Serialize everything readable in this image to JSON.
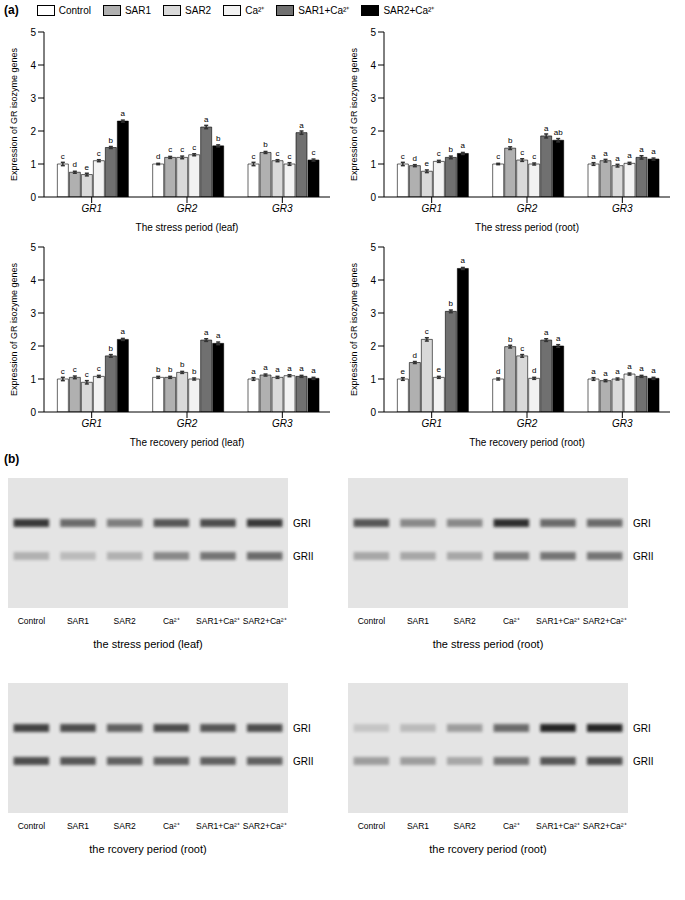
{
  "panel_labels": [
    "(a)",
    "(b)"
  ],
  "chart_data": [
    {
      "type": "bar",
      "legend": "top",
      "x_label": "The stress period (leaf)",
      "y_label": "Expression of GR isozyme genes",
      "categories": [
        "GR1",
        "GR2",
        "GR3"
      ],
      "ylim": [
        0,
        5
      ],
      "yticks": [
        0,
        1,
        2,
        3,
        4,
        5
      ],
      "grid": false,
      "series": [
        {
          "name": "Control",
          "color": "#ffffff",
          "values": [
            1.0,
            1.0,
            1.0
          ],
          "errors": [
            0.05,
            0.02,
            0.05
          ],
          "letters": [
            "c",
            "d",
            "c"
          ]
        },
        {
          "name": "SAR1",
          "color": "#b0b0b0",
          "values": [
            0.75,
            1.2,
            1.35
          ],
          "errors": [
            0.03,
            0.03,
            0.03
          ],
          "letters": [
            "d",
            "c",
            "b"
          ]
        },
        {
          "name": "SAR2",
          "color": "#d9d9d9",
          "values": [
            0.68,
            1.2,
            1.1
          ],
          "errors": [
            0.04,
            0.04,
            0.03
          ],
          "letters": [
            "e",
            "c",
            "c"
          ]
        },
        {
          "name": "Ca²⁺",
          "color": "#f2f2f2",
          "values": [
            1.1,
            1.28,
            1.0
          ],
          "errors": [
            0.03,
            0.03,
            0.04
          ],
          "letters": [
            "c",
            "c",
            "c"
          ]
        },
        {
          "name": "SAR1+Ca²⁺",
          "color": "#707070",
          "values": [
            1.5,
            2.12,
            1.95
          ],
          "errors": [
            0.03,
            0.05,
            0.05
          ],
          "letters": [
            "b",
            "a",
            "a"
          ]
        },
        {
          "name": "SAR2+Ca²⁺",
          "color": "#000000",
          "values": [
            2.3,
            1.55,
            1.12
          ],
          "errors": [
            0.03,
            0.03,
            0.03
          ],
          "letters": [
            "a",
            "b",
            "c"
          ]
        }
      ]
    },
    {
      "type": "bar",
      "x_label": "The stress period (root)",
      "y_label": "Expression of GR isozyme genes",
      "categories": [
        "GR1",
        "GR2",
        "GR3"
      ],
      "ylim": [
        0,
        5
      ],
      "yticks": [
        0,
        1,
        2,
        3,
        4,
        5
      ],
      "grid": false,
      "series": [
        {
          "name": "Control",
          "color": "#ffffff",
          "values": [
            1.0,
            1.0,
            1.0
          ],
          "errors": [
            0.05,
            0.02,
            0.04
          ],
          "letters": [
            "c",
            "c",
            "a"
          ]
        },
        {
          "name": "SAR1",
          "color": "#b0b0b0",
          "values": [
            0.95,
            1.48,
            1.1
          ],
          "errors": [
            0.03,
            0.04,
            0.04
          ],
          "letters": [
            "d",
            "b",
            "a"
          ]
        },
        {
          "name": "SAR2",
          "color": "#d9d9d9",
          "values": [
            0.78,
            1.12,
            0.95
          ],
          "errors": [
            0.04,
            0.04,
            0.04
          ],
          "letters": [
            "e",
            "c",
            "a"
          ]
        },
        {
          "name": "Ca²⁺",
          "color": "#f2f2f2",
          "values": [
            1.08,
            1.0,
            1.02
          ],
          "errors": [
            0.03,
            0.03,
            0.03
          ],
          "letters": [
            "c",
            "c",
            "a"
          ]
        },
        {
          "name": "SAR1+Ca²⁺",
          "color": "#707070",
          "values": [
            1.2,
            1.85,
            1.2
          ],
          "errors": [
            0.04,
            0.06,
            0.05
          ],
          "letters": [
            "b",
            "a",
            "a"
          ]
        },
        {
          "name": "SAR2+Ca²⁺",
          "color": "#000000",
          "values": [
            1.32,
            1.72,
            1.15
          ],
          "errors": [
            0.03,
            0.05,
            0.03
          ],
          "letters": [
            "a",
            "ab",
            "a"
          ]
        }
      ]
    },
    {
      "type": "bar",
      "x_label": "The recovery period (leaf)",
      "y_label": "Expression of GR isozyme genes",
      "categories": [
        "GR1",
        "GR2",
        "GR3"
      ],
      "ylim": [
        0,
        5
      ],
      "yticks": [
        0,
        1,
        2,
        3,
        4,
        5
      ],
      "grid": false,
      "series": [
        {
          "name": "Control",
          "color": "#ffffff",
          "values": [
            1.0,
            1.05,
            1.0
          ],
          "errors": [
            0.05,
            0.03,
            0.04
          ],
          "letters": [
            "c",
            "b",
            "a"
          ]
        },
        {
          "name": "SAR1",
          "color": "#b0b0b0",
          "values": [
            1.05,
            1.05,
            1.12
          ],
          "errors": [
            0.04,
            0.03,
            0.03
          ],
          "letters": [
            "c",
            "b",
            "a"
          ]
        },
        {
          "name": "SAR2",
          "color": "#d9d9d9",
          "values": [
            0.9,
            1.2,
            1.05
          ],
          "errors": [
            0.05,
            0.03,
            0.03
          ],
          "letters": [
            "c",
            "b",
            "a"
          ]
        },
        {
          "name": "Ca²⁺",
          "color": "#f2f2f2",
          "values": [
            1.08,
            1.0,
            1.1
          ],
          "errors": [
            0.03,
            0.03,
            0.03
          ],
          "letters": [
            "c",
            "b",
            "a"
          ]
        },
        {
          "name": "SAR1+Ca²⁺",
          "color": "#707070",
          "values": [
            1.7,
            2.18,
            1.08
          ],
          "errors": [
            0.04,
            0.04,
            0.03
          ],
          "letters": [
            "b",
            "a",
            "a"
          ]
        },
        {
          "name": "SAR2+Ca²⁺",
          "color": "#000000",
          "values": [
            2.2,
            2.08,
            1.02
          ],
          "errors": [
            0.03,
            0.04,
            0.03
          ],
          "letters": [
            "a",
            "a",
            "a"
          ]
        }
      ]
    },
    {
      "type": "bar",
      "x_label": "The recovery period (root)",
      "y_label": "Expression of GR isozyme genes",
      "categories": [
        "GR1",
        "GR2",
        "GR3"
      ],
      "ylim": [
        0,
        5
      ],
      "yticks": [
        0,
        1,
        2,
        3,
        4,
        5
      ],
      "grid": false,
      "series": [
        {
          "name": "Control",
          "color": "#ffffff",
          "values": [
            1.0,
            1.0,
            1.0
          ],
          "errors": [
            0.04,
            0.03,
            0.04
          ],
          "letters": [
            "e",
            "d",
            "a"
          ]
        },
        {
          "name": "SAR1",
          "color": "#b0b0b0",
          "values": [
            1.5,
            1.98,
            0.95
          ],
          "errors": [
            0.03,
            0.04,
            0.03
          ],
          "letters": [
            "d",
            "b",
            "a"
          ]
        },
        {
          "name": "SAR2",
          "color": "#d9d9d9",
          "values": [
            2.2,
            1.7,
            1.0
          ],
          "errors": [
            0.05,
            0.04,
            0.03
          ],
          "letters": [
            "c",
            "c",
            "a"
          ]
        },
        {
          "name": "Ca²⁺",
          "color": "#f2f2f2",
          "values": [
            1.05,
            1.02,
            1.15
          ],
          "errors": [
            0.03,
            0.03,
            0.03
          ],
          "letters": [
            "e",
            "d",
            "a"
          ]
        },
        {
          "name": "SAR1+Ca²⁺",
          "color": "#707070",
          "values": [
            3.05,
            2.18,
            1.08
          ],
          "errors": [
            0.04,
            0.04,
            0.03
          ],
          "letters": [
            "b",
            "a",
            "a"
          ]
        },
        {
          "name": "SAR2+Ca²⁺",
          "color": "#000000",
          "values": [
            4.35,
            2.0,
            1.02
          ],
          "errors": [
            0.03,
            0.04,
            0.03
          ],
          "letters": [
            "a",
            "a",
            "a"
          ]
        }
      ]
    }
  ],
  "gels": [
    {
      "caption": "the stress period (leaf)",
      "lanes": [
        "Control",
        "SAR1",
        "SAR2",
        "Ca²⁺",
        "SAR1+Ca²⁺",
        "SAR2+Ca²⁺"
      ],
      "bands": [
        {
          "name": "GRI",
          "intensity": [
            0.85,
            0.6,
            0.5,
            0.7,
            0.75,
            0.85
          ]
        },
        {
          "name": "GRII",
          "intensity": [
            0.25,
            0.2,
            0.25,
            0.45,
            0.55,
            0.6
          ]
        }
      ]
    },
    {
      "caption": "the stress period (root)",
      "lanes": [
        "Control",
        "SAR1",
        "SAR2",
        "Ca²⁺",
        "SAR1+Ca²⁺",
        "SAR2+Ca²⁺"
      ],
      "bands": [
        {
          "name": "GRI",
          "intensity": [
            0.7,
            0.45,
            0.45,
            0.9,
            0.6,
            0.6
          ]
        },
        {
          "name": "GRII",
          "intensity": [
            0.3,
            0.3,
            0.3,
            0.5,
            0.55,
            0.55
          ]
        }
      ]
    },
    {
      "caption": "the rcovery period (root)",
      "lanes": [
        "Control",
        "SAR1",
        "SAR2",
        "Ca²⁺",
        "SAR1+Ca²⁺",
        "SAR2+Ca²⁺"
      ],
      "bands": [
        {
          "name": "GRI",
          "intensity": [
            0.8,
            0.75,
            0.65,
            0.75,
            0.7,
            0.75
          ]
        },
        {
          "name": "GRII",
          "intensity": [
            0.75,
            0.7,
            0.65,
            0.65,
            0.65,
            0.65
          ]
        }
      ]
    },
    {
      "caption": "the rcovery period (root)",
      "lanes": [
        "Control",
        "SAR1",
        "SAR2",
        "Ca²⁺",
        "SAR1+Ca²⁺",
        "SAR2+Ca²⁺"
      ],
      "bands": [
        {
          "name": "GRI",
          "intensity": [
            0.15,
            0.2,
            0.35,
            0.6,
            0.95,
            0.95
          ]
        },
        {
          "name": "GRII",
          "intensity": [
            0.35,
            0.35,
            0.3,
            0.55,
            0.7,
            0.75
          ]
        }
      ]
    }
  ]
}
